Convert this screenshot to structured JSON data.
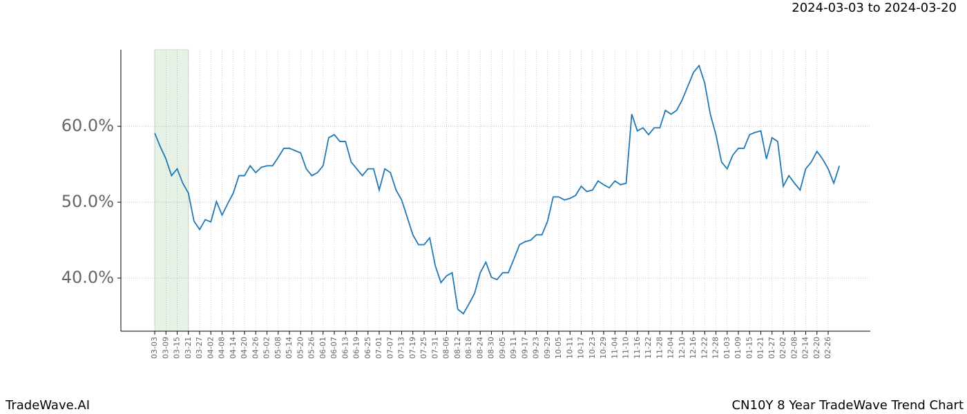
{
  "chart_data": {
    "type": "line",
    "title": "CN10Y 8 Year TradeWave Trend Chart",
    "subtitle": "2024-03-03 to 2024-03-20",
    "brand": "TradeWave.AI",
    "categories": [
      "03-03",
      null,
      "03-09",
      null,
      "03-15",
      null,
      "03-21",
      null,
      "03-27",
      null,
      "04-02",
      null,
      "04-08",
      null,
      "04-14",
      null,
      "04-20",
      null,
      "04-26",
      null,
      "05-02",
      null,
      "05-08",
      null,
      "05-14",
      null,
      "05-20",
      null,
      "05-26",
      null,
      "06-01",
      null,
      "06-07",
      null,
      "06-13",
      null,
      "06-19",
      null,
      "06-25",
      null,
      "07-01",
      null,
      "07-07",
      null,
      "07-13",
      null,
      "07-19",
      null,
      "07-25",
      null,
      "07-31",
      null,
      "08-06",
      null,
      "08-12",
      null,
      "08-18",
      null,
      "08-24",
      null,
      "08-30",
      null,
      "09-05",
      null,
      "09-11",
      null,
      "09-17",
      null,
      "09-23",
      null,
      "09-29",
      null,
      "10-05",
      null,
      "10-11",
      null,
      "10-17",
      null,
      "10-23",
      null,
      "10-29",
      null,
      "11-04",
      null,
      "11-10",
      null,
      "11-16",
      null,
      "11-22",
      null,
      "11-28",
      null,
      "12-04",
      null,
      "12-10",
      null,
      "12-16",
      null,
      "12-22",
      null,
      "12-28",
      null,
      "01-03",
      null,
      "01-09",
      null,
      "01-15",
      null,
      "01-21",
      null,
      "01-27",
      null,
      "02-02",
      null,
      "02-08",
      null,
      "02-14",
      null,
      "02-20",
      null,
      "02-26",
      null,
      null
    ],
    "values": [
      59.1,
      57.3,
      55.7,
      53.5,
      54.4,
      52.5,
      51.2,
      47.5,
      46.4,
      47.7,
      47.4,
      50.1,
      48.3,
      49.8,
      51.2,
      53.5,
      53.5,
      54.8,
      53.9,
      54.6,
      54.8,
      54.8,
      55.9,
      57.1,
      57.1,
      56.8,
      56.5,
      54.4,
      53.5,
      53.9,
      54.8,
      58.5,
      58.9,
      58.0,
      58.0,
      55.3,
      54.4,
      53.5,
      54.4,
      54.4,
      51.6,
      54.4,
      53.9,
      51.6,
      50.3,
      48.0,
      45.7,
      44.4,
      44.4,
      45.3,
      41.6,
      39.4,
      40.3,
      40.7,
      35.9,
      35.3,
      36.6,
      38.0,
      40.7,
      42.1,
      40.1,
      39.8,
      40.7,
      40.7,
      42.5,
      44.4,
      44.8,
      45.0,
      45.7,
      45.7,
      47.5,
      50.7,
      50.7,
      50.3,
      50.5,
      50.9,
      52.1,
      51.4,
      51.6,
      52.8,
      52.3,
      51.9,
      52.8,
      52.3,
      52.5,
      61.6,
      59.4,
      59.8,
      58.9,
      59.8,
      59.8,
      62.1,
      61.6,
      62.1,
      63.5,
      65.3,
      67.1,
      68.0,
      65.7,
      61.6,
      58.9,
      55.3,
      54.4,
      56.2,
      57.1,
      57.1,
      58.9,
      59.2,
      59.4,
      55.7,
      58.5,
      58.0,
      52.1,
      53.5,
      52.5,
      51.6,
      54.4,
      55.3,
      56.7,
      55.7,
      54.4,
      52.5,
      54.8
    ],
    "color": "#1f77b4",
    "ylim": [
      33,
      70.1
    ],
    "yticks": [
      {
        "value": 40,
        "label": "40.0%"
      },
      {
        "value": 50,
        "label": "50.0%"
      },
      {
        "value": 60,
        "label": "60.0%"
      }
    ],
    "grid": true
  }
}
